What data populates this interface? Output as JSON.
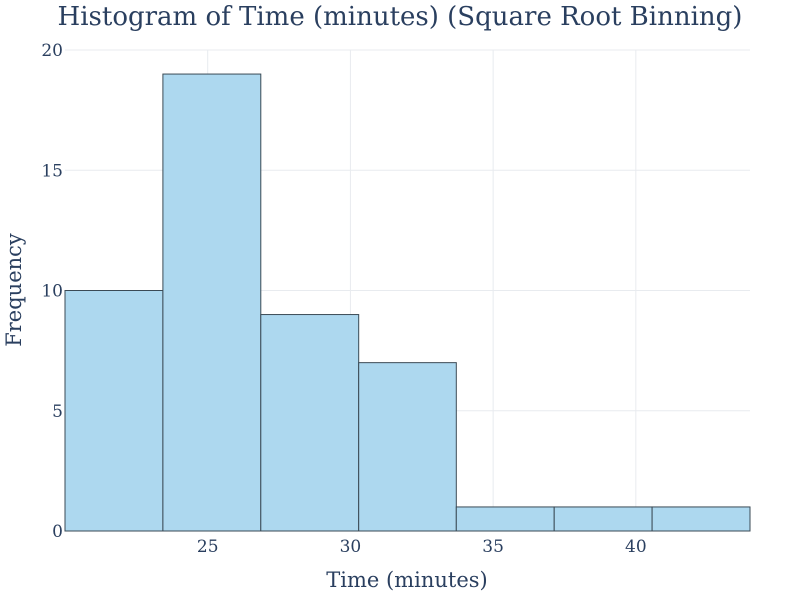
{
  "chart_data": {
    "type": "bar",
    "title": "Histogram of Time (minutes) (Square Root Binning)",
    "xlabel": "Time (minutes)",
    "ylabel": "Frequency",
    "bins": [
      {
        "x0": 20.0,
        "x1": 23.43,
        "count": 10
      },
      {
        "x0": 23.43,
        "x1": 26.86,
        "count": 19
      },
      {
        "x0": 26.86,
        "x1": 30.29,
        "count": 9
      },
      {
        "x0": 30.29,
        "x1": 33.71,
        "count": 7
      },
      {
        "x0": 33.71,
        "x1": 37.14,
        "count": 1
      },
      {
        "x0": 37.14,
        "x1": 40.57,
        "count": 1
      },
      {
        "x0": 40.57,
        "x1": 44.0,
        "count": 1
      }
    ],
    "xlim": [
      20.0,
      44.0
    ],
    "ylim": [
      0,
      20
    ],
    "x_ticks": [
      25,
      30,
      35,
      40
    ],
    "y_ticks": [
      0,
      5,
      10,
      15,
      20
    ],
    "grid": true,
    "colors": {
      "bar_fill": "#add8ef",
      "bar_stroke": "#3a4a55",
      "grid": "#e8ebef",
      "text": "#2a3f5f"
    }
  }
}
